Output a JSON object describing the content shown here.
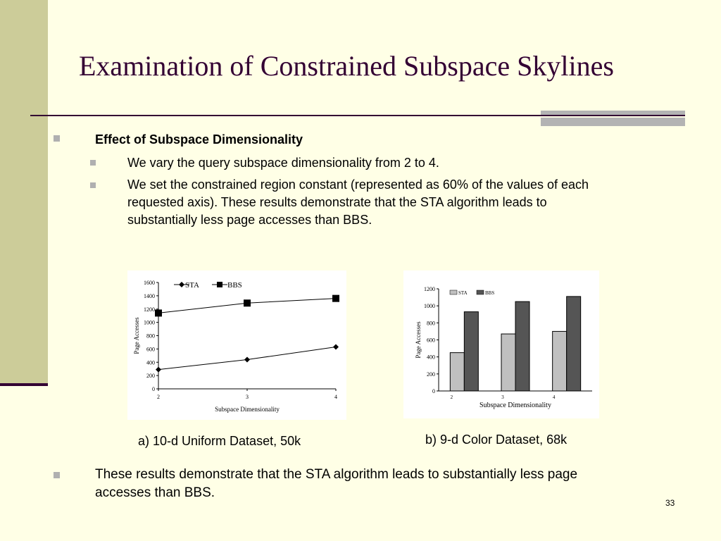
{
  "title": "Examination of Constrained Subspace Skylines",
  "bullets": {
    "heading": "Effect of Subspace Dimensionality",
    "sub1": "We vary the query subspace dimensionality from 2 to 4.",
    "sub2_line1": "We set the constrained region constant (represented as 60% of the values of each",
    "sub2_line2": "requested axis). These results demonstrate that the STA algorithm leads to",
    "sub2_line3": "substantially less page accesses than BBS.",
    "bottom_line1": "These results demonstrate that the STA algorithm leads to substantially less page",
    "bottom_line2": "accesses than BBS."
  },
  "captions": {
    "a": "a) 10-d Uniform Dataset, 50k",
    "b": "b) 9-d Color Dataset, 68k"
  },
  "page_number": "33",
  "chart_data": [
    {
      "type": "line",
      "x": [
        2,
        3,
        4
      ],
      "series": [
        {
          "name": "STA",
          "values": [
            290,
            440,
            630
          ]
        },
        {
          "name": "BBS",
          "values": [
            1140,
            1290,
            1360
          ]
        }
      ],
      "xlabel": "Subspace Dimensionality",
      "ylabel": "Page Accesses",
      "ylim": [
        0,
        1600
      ],
      "yticks": [
        0,
        200,
        400,
        600,
        800,
        1000,
        1200,
        1400,
        1600
      ],
      "xticks": [
        "2",
        "3",
        "4"
      ],
      "legend": "top"
    },
    {
      "type": "bar",
      "categories": [
        "2",
        "3",
        "4"
      ],
      "series": [
        {
          "name": "STA",
          "values": [
            450,
            670,
            700
          ],
          "color": "#c0c0c0"
        },
        {
          "name": "BBS",
          "values": [
            930,
            1050,
            1110
          ],
          "color": "#555555"
        }
      ],
      "xlabel": "Subspace Dimensionality",
      "ylabel": "Page Accesses",
      "ylim": [
        0,
        1200
      ],
      "yticks": [
        0,
        200,
        400,
        600,
        800,
        1000,
        1200
      ],
      "legend": "top-left"
    }
  ]
}
